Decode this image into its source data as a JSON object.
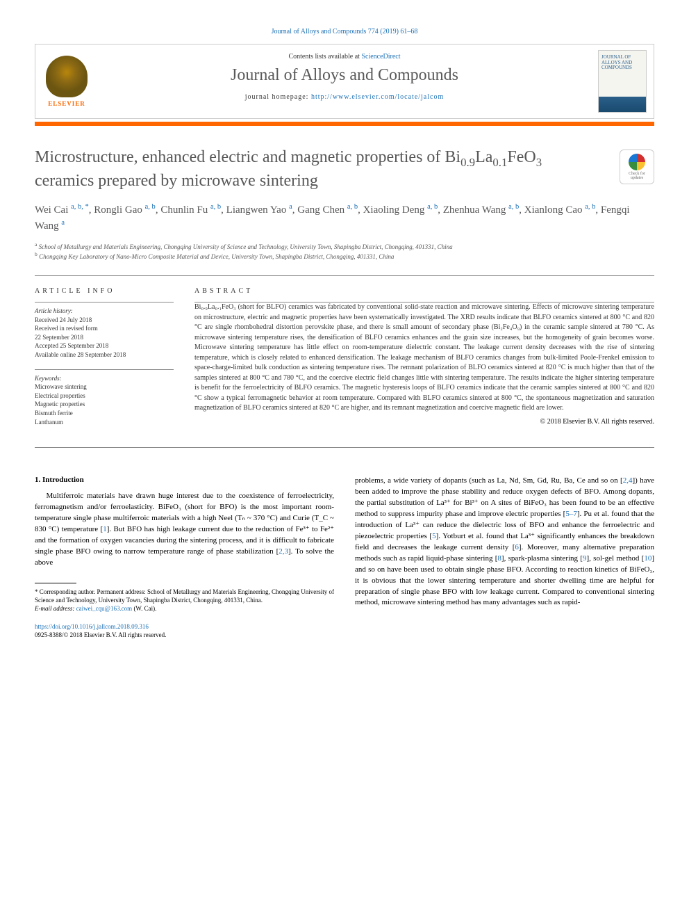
{
  "journal_ref": "Journal of Alloys and Compounds 774 (2019) 61–68",
  "header": {
    "contents_prefix": "Contents lists available at ",
    "contents_link": "ScienceDirect",
    "journal_name": "Journal of Alloys and Compounds",
    "homepage_prefix": "journal homepage: ",
    "homepage_url": "http://www.elsevier.com/locate/jalcom",
    "elsevier_label": "ELSEVIER",
    "cover_title": "JOURNAL OF ALLOYS AND COMPOUNDS"
  },
  "check_badge": {
    "line1": "Check for",
    "line2": "updates"
  },
  "title_parts": {
    "pre": "Microstructure, enhanced electric and magnetic properties of Bi",
    "sub1": "0.9",
    "mid1": "La",
    "sub2": "0.1",
    "mid2": "FeO",
    "sub3": "3",
    "post": " ceramics prepared by microwave sintering"
  },
  "authors_html": "Wei Cai <span class='sup'>a, b, *</span>, Rongli Gao <span class='sup'>a, b</span>, Chunlin Fu <span class='sup'>a, b</span>, Liangwen Yao <span class='sup'>a</span>, Gang Chen <span class='sup'>a, b</span>, Xiaoling Deng <span class='sup'>a, b</span>, Zhenhua Wang <span class='sup'>a, b</span>, Xianlong Cao <span class='sup'>a, b</span>, Fengqi Wang <span class='sup'>a</span>",
  "affiliations": {
    "a": "School of Metallurgy and Materials Engineering, Chongqing University of Science and Technology, University Town, Shapingba District, Chongqing, 401331, China",
    "b": "Chongqing Key Laboratory of Nano-Micro Composite Material and Device, University Town, Shapingba District, Chongqing, 401331, China"
  },
  "article_info": {
    "label": "article info",
    "history_label": "Article history:",
    "received": "Received 24 July 2018",
    "revised1": "Received in revised form",
    "revised2": "22 September 2018",
    "accepted": "Accepted 25 September 2018",
    "online": "Available online 28 September 2018",
    "keywords_label": "Keywords:",
    "keywords": [
      "Microwave sintering",
      "Electrical properties",
      "Magnetic properties",
      "Bismuth ferrite",
      "Lanthanum"
    ]
  },
  "abstract": {
    "label": "abstract",
    "text": "Bi₀.₉La₀.₁FeO₃ (short for BLFO) ceramics was fabricated by conventional solid-state reaction and microwave sintering. Effects of microwave sintering temperature on microstructure, electric and magnetic properties have been systematically investigated. The XRD results indicate that BLFO ceramics sintered at 800 °C and 820 °C are single rhombohedral distortion perovskite phase, and there is small amount of secondary phase (Bi₂Fe₄O₉) in the ceramic sample sintered at 780 °C. As microwave sintering temperature rises, the densification of BLFO ceramics enhances and the grain size increases, but the homogeneity of grain becomes worse. Microwave sintering temperature has little effect on room-temperature dielectric constant. The leakage current density decreases with the rise of sintering temperature, which is closely related to enhanced densification. The leakage mechanism of BLFO ceramics changes from bulk-limited Poole-Frenkel emission to space-charge-limited bulk conduction as sintering temperature rises. The remnant polarization of BLFO ceramics sintered at 820 °C is much higher than that of the samples sintered at 800 °C and 780 °C, and the coercive electric field changes little with sintering temperature. The results indicate the higher sintering temperature is benefit for the ferroelectricity of BLFO ceramics. The magnetic hysteresis loops of BLFO ceramics indicate that the ceramic samples sintered at 800 °C and 820 °C show a typical ferromagnetic behavior at room temperature. Compared with BLFO ceramics sintered at 800 °C, the spontaneous magnetization and saturation magnetization of BLFO ceramics sintered at 820 °C are higher, and its remnant magnetization and coercive magnetic field are lower.",
    "copyright": "© 2018 Elsevier B.V. All rights reserved."
  },
  "intro": {
    "heading": "1. Introduction",
    "col1": "Multiferroic materials have drawn huge interest due to the coexistence of ferroelectricity, ferromagnetism and/or ferroelasticity. BiFeO₃ (short for BFO) is the most important room-temperature single phase multiferroic materials with a high Neel (Tₙ ~ 370 °C) and Curie (T_C ~ 830 °C) temperature [1]. But BFO has high leakage current due to the reduction of Fe³⁺ to Fe²⁺ and the formation of oxygen vacancies during the sintering process, and it is difficult to fabricate single phase BFO owing to narrow temperature range of phase stabilization [2,3]. To solve the above",
    "col2": "problems, a wide variety of dopants (such as La, Nd, Sm, Gd, Ru, Ba, Ce and so on [2,4]) have been added to improve the phase stability and reduce oxygen defects of BFO. Among dopants, the partial substitution of La³⁺ for Bi³⁺ on A sites of BiFeO₃ has been found to be an effective method to suppress impurity phase and improve electric properties [5–7]. Pu et al. found that the introduction of La³⁺ can reduce the dielectric loss of BFO and enhance the ferroelectric and piezoelectric properties [5]. Yotburt et al. found that La³⁺ significantly enhances the breakdown field and decreases the leakage current density [6]. Moreover, many alternative preparation methods such as rapid liquid-phase sintering [8], spark-plasma sintering [9], sol-gel method [10] and so on have been used to obtain single phase BFO. According to reaction kinetics of BiFeO₃, it is obvious that the lower sintering temperature and shorter dwelling time are helpful for preparation of single phase BFO with low leakage current. Compared to conventional sintering method, microwave sintering method has many advantages such as rapid-"
  },
  "footnote": {
    "corresp": "* Corresponding author. Permanent address: School of Metallurgy and Materials Engineering, Chongqing University of Science and Technology, University Town, Shapingba District, Chongqing, 401331, China.",
    "email_label": "E-mail address: ",
    "email": "caiwei_cqu@163.com",
    "email_suffix": " (W. Cai)."
  },
  "doi": {
    "url": "https://doi.org/10.1016/j.jallcom.2018.09.316",
    "issn_line": "0925-8388/© 2018 Elsevier B.V. All rights reserved."
  },
  "colors": {
    "orange": "#ff6600",
    "link": "#1a6fb5",
    "heading_gray": "#575757"
  }
}
